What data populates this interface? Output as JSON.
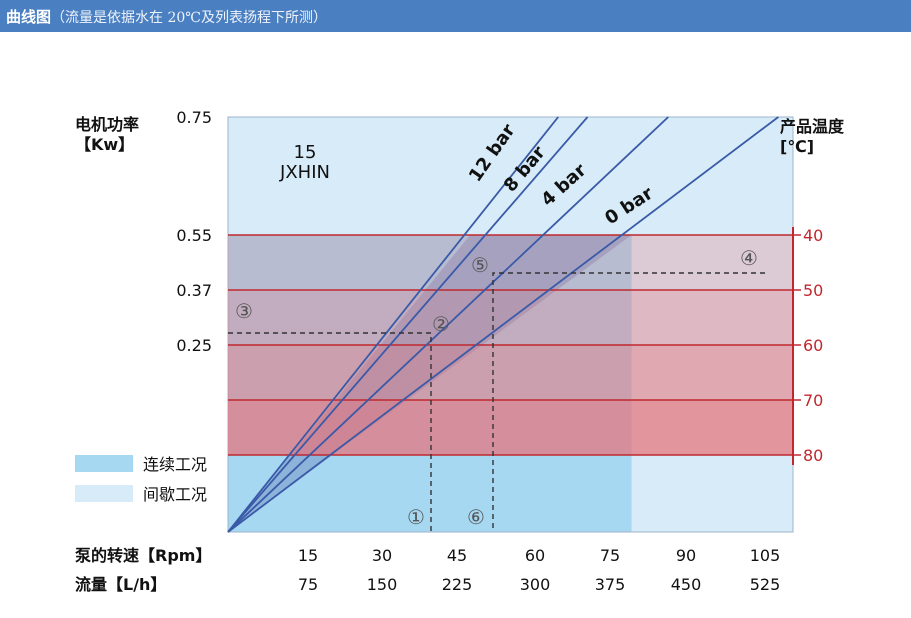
{
  "header": {
    "title": "曲线图",
    "subtitle": "（流量是依据水在 20℃及列表扬程下所测）"
  },
  "colors": {
    "continuous": "#a6d8f2",
    "intermittent": "#d7ecf8",
    "temp_band": "#e8737a",
    "temp_line": "#c0282e",
    "temp_text": "#c0282e",
    "pressure_line": "#3a5aa8",
    "header_bg": "#4a7fc1"
  },
  "chart_data": {
    "type": "line",
    "model": {
      "size": "15",
      "name": "JXHIN"
    },
    "ylabel": "电机功率",
    "ylabel_unit": "【Kw】",
    "y_ticks": [
      "0.75",
      "0.55",
      "0.37",
      "0.25"
    ],
    "y_values": [
      0.75,
      0.55,
      0.37,
      0.25
    ],
    "ylim": [
      0,
      0.75
    ],
    "y2label": "产品温度",
    "y2label_unit": "[℃]",
    "y2_ticks": [
      "40",
      "50",
      "60",
      "70",
      "80"
    ],
    "xlabel_speed": "泵的转速【Rpm】",
    "speed": [
      "15",
      "30",
      "45",
      "60",
      "75",
      "90",
      "105"
    ],
    "xlabel_flow": "流量【L/h】",
    "flow": [
      "75",
      "150",
      "225",
      "300",
      "375",
      "450",
      "525"
    ],
    "xlim": [
      0,
      105
    ],
    "series": [
      {
        "name": "12 bar",
        "x": [
          0,
          45
        ],
        "y": [
          0,
          0.55
        ]
      },
      {
        "name": "8 bar",
        "x": [
          0,
          49
        ],
        "y": [
          0,
          0.55
        ]
      },
      {
        "name": "4 bar",
        "x": [
          0,
          60
        ],
        "y": [
          0,
          0.55
        ]
      },
      {
        "name": "0 bar",
        "x": [
          0,
          75
        ],
        "y": [
          0,
          0.55
        ]
      }
    ],
    "regions": {
      "continuous_max_rpm": 75,
      "intermittent_max_rpm": 105
    },
    "legend": {
      "continuous": "连续工况",
      "intermittent": "间歇工况"
    },
    "markers": [
      "①",
      "②",
      "③",
      "④",
      "⑤",
      "⑥"
    ]
  }
}
